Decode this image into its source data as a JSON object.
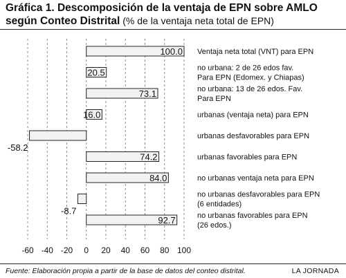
{
  "title": {
    "main": "Gráfica 1. Descomposición de la ventaja de EPN sobre AMLO",
    "line2_bold": "según Conteo Distrital",
    "line2_rest": " (% de la ventaja neta total de EPN)"
  },
  "footer": {
    "source": "Fuente: Elaboración propia a partir de la base de datos del conteo distrital.",
    "credit": "LA JORNADA"
  },
  "colors": {
    "bar_fill": "#f2f2f2",
    "bar_stroke": "#222222",
    "grid": "#8c8c8c",
    "text": "#111111"
  },
  "chart_data": {
    "type": "bar",
    "orientation": "horizontal",
    "title": "Gráfica 1. Descomposición de la ventaja de EPN sobre AMLO según Conteo Distrital (% de la ventaja neta total de EPN)",
    "xlabel": "",
    "ylabel": "",
    "xlim": [
      -60,
      100
    ],
    "x_ticks": [
      "-60",
      "-40",
      "-20",
      "0",
      "20",
      "40",
      "60",
      "80",
      "100"
    ],
    "grid": "vertical dashed",
    "categories": [
      [
        "Ventaja neta total (VNT) para EPN"
      ],
      [
        "no urbana: 2 de 26 edos fav.",
        "Para EPN (Edomex. y Chiapas)"
      ],
      [
        "no urbana: 13 de 26 edos. Fav.",
        "Para EPN"
      ],
      [
        "urbanas (ventaja neta) para EPN"
      ],
      [
        "urbanas desfavorables para EPN"
      ],
      [
        "urbanas favorables para EPN"
      ],
      [
        "no urbanas ventaja neta para EPN"
      ],
      [
        "no urbanas desfavorables para EPN",
        "(6 entidades)"
      ],
      [
        "no urbanas favorables para EPN",
        "(26 edos.)"
      ]
    ],
    "values": [
      100.0,
      20.5,
      73.1,
      16.0,
      -58.2,
      74.2,
      84.0,
      -8.7,
      92.7
    ],
    "value_labels": [
      "100.0",
      "20.5",
      "73.1",
      "16.0",
      "-58.2",
      "74.2",
      "84.0",
      "-8.7",
      "92.7"
    ]
  }
}
